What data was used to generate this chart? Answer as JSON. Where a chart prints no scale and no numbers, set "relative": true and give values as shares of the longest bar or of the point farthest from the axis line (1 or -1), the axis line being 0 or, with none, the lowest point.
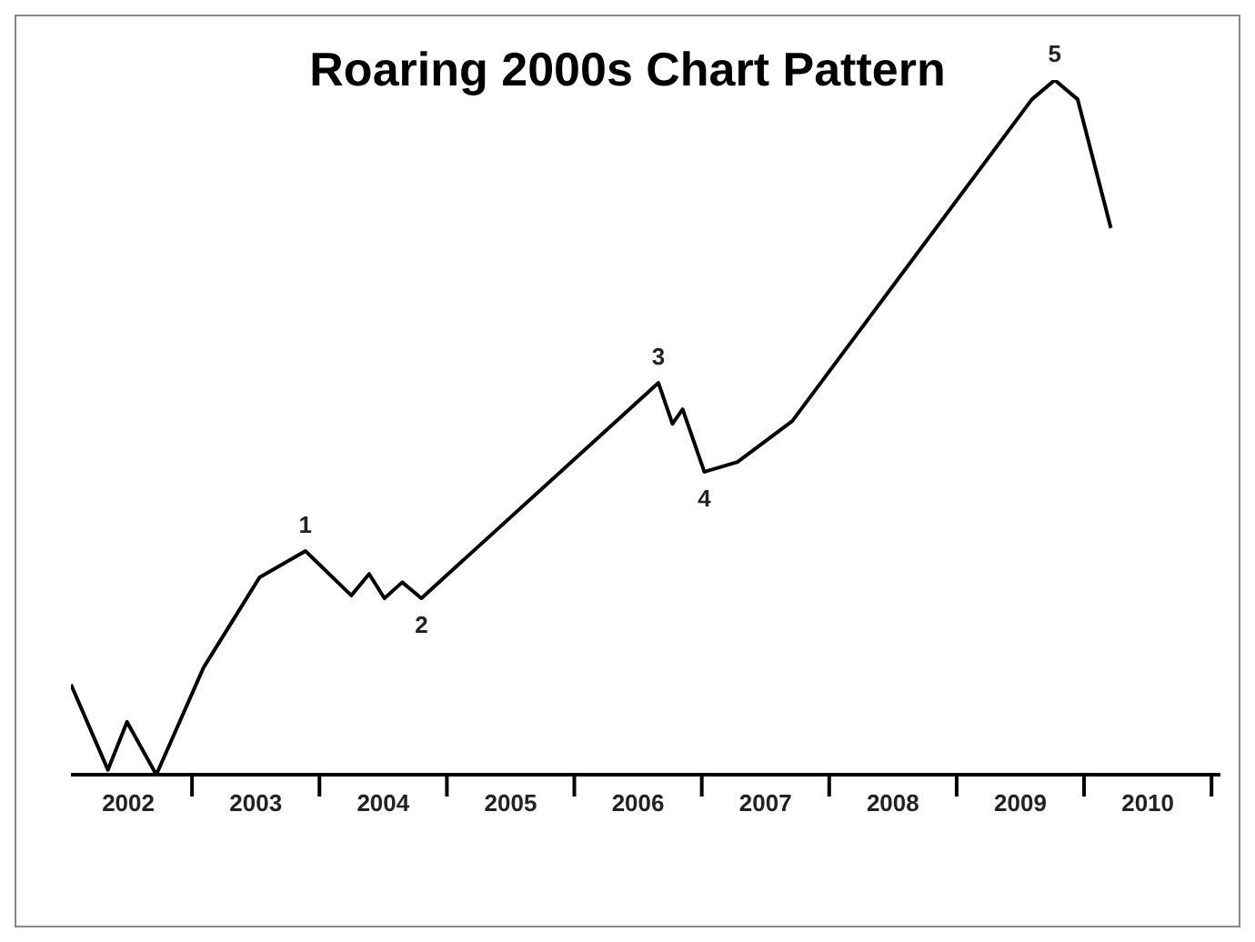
{
  "chart_data": {
    "type": "line",
    "title": "Roaring 2000s Chart Pattern",
    "relative": true,
    "x": [
      2002.05,
      2002.34,
      2002.49,
      2002.72,
      2003.09,
      2003.53,
      2003.89,
      2004.25,
      2004.39,
      2004.51,
      2004.65,
      2004.8,
      2006.66,
      2006.77,
      2006.85,
      2007.02,
      2007.28,
      2007.71,
      2009.59,
      2009.77,
      2009.95,
      2010.21
    ],
    "series": [
      {
        "color": "#000000",
        "values": [
          0.13,
          0.007,
          0.076,
          0,
          0.154,
          0.284,
          0.322,
          0.258,
          0.289,
          0.254,
          0.277,
          0.254,
          0.564,
          0.505,
          0.526,
          0.436,
          0.45,
          0.509,
          0.972,
          1,
          0.972,
          0.787
        ]
      }
    ],
    "xlim": [
      2002.05,
      2011.07
    ],
    "xticks": [
      {
        "value": 2002.5,
        "label": "2002"
      },
      {
        "value": 2003,
        "label": null
      },
      {
        "value": 2003.5,
        "label": "2003"
      },
      {
        "value": 2004,
        "label": null
      },
      {
        "value": 2004.5,
        "label": "2004"
      },
      {
        "value": 2005,
        "label": null
      },
      {
        "value": 2005.5,
        "label": "2005"
      },
      {
        "value": 2006,
        "label": null
      },
      {
        "value": 2006.5,
        "label": "2006"
      },
      {
        "value": 2007,
        "label": null
      },
      {
        "value": 2007.5,
        "label": "2007"
      },
      {
        "value": 2008,
        "label": null
      },
      {
        "value": 2008.5,
        "label": "2008"
      },
      {
        "value": 2009,
        "label": null
      },
      {
        "value": 2009.5,
        "label": "2009"
      },
      {
        "value": 2010,
        "label": null
      },
      {
        "value": 2010.5,
        "label": "2010"
      },
      {
        "value": 2011,
        "label": null
      }
    ],
    "annotations": [
      {
        "text": "1",
        "x": 2003.89,
        "y": 0.322
      },
      {
        "text": "2",
        "x": 2004.8,
        "y": 0.254
      },
      {
        "text": "3",
        "x": 2006.66,
        "y": 0.564
      },
      {
        "text": "4",
        "x": 2007.02,
        "y": 0.436
      },
      {
        "text": "5",
        "x": 2009.77,
        "y": 1
      }
    ],
    "grid": false,
    "legend": false,
    "marker": "none",
    "line_style": "solid"
  }
}
